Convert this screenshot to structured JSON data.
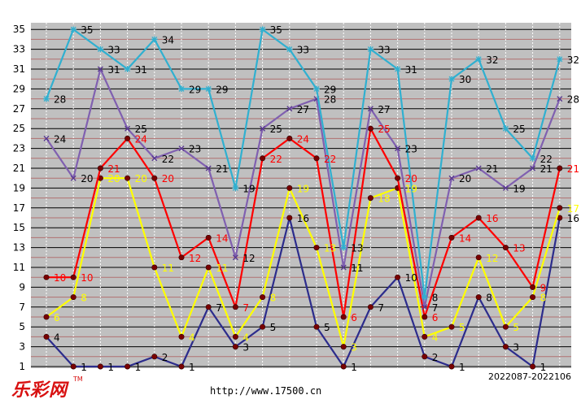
{
  "logo": "乐彩网",
  "url": "http://www.17500.cn",
  "period_range": "2022087-2022106",
  "chart_data": {
    "type": "line",
    "ylim": [
      1,
      35
    ],
    "yticks": [
      1,
      3,
      5,
      7,
      9,
      11,
      13,
      15,
      17,
      19,
      21,
      23,
      25,
      27,
      29,
      31,
      33,
      35
    ],
    "grid": true,
    "x": [
      1,
      2,
      3,
      4,
      5,
      6,
      7,
      8,
      9,
      10,
      11,
      12,
      13,
      14,
      15,
      16,
      17,
      18,
      19,
      20
    ],
    "series": [
      {
        "color": "#2c2c8c",
        "values": [
          4,
          1,
          1,
          1,
          2,
          1,
          7,
          3,
          5,
          16,
          5,
          1,
          7,
          10,
          2,
          1,
          8,
          3,
          1,
          16
        ]
      },
      {
        "color": "#ffff00",
        "values": [
          6,
          8,
          20,
          20,
          11,
          4,
          11,
          4,
          8,
          19,
          13,
          3,
          18,
          19,
          4,
          5,
          12,
          5,
          8,
          17
        ]
      },
      {
        "color": "#ff0000",
        "values": [
          10,
          10,
          21,
          24,
          20,
          12,
          14,
          7,
          22,
          24,
          22,
          6,
          25,
          20,
          6,
          14,
          16,
          13,
          9,
          21
        ]
      },
      {
        "color": "#8060b0",
        "values": [
          24,
          20,
          31,
          25,
          22,
          23,
          21,
          12,
          25,
          27,
          28,
          11,
          27,
          23,
          7,
          20,
          21,
          19,
          21,
          28
        ]
      },
      {
        "color": "#30b0d0",
        "values": [
          28,
          35,
          33,
          31,
          34,
          29,
          29,
          19,
          35,
          33,
          29,
          13,
          33,
          31,
          8,
          30,
          32,
          25,
          22,
          32
        ]
      }
    ]
  }
}
